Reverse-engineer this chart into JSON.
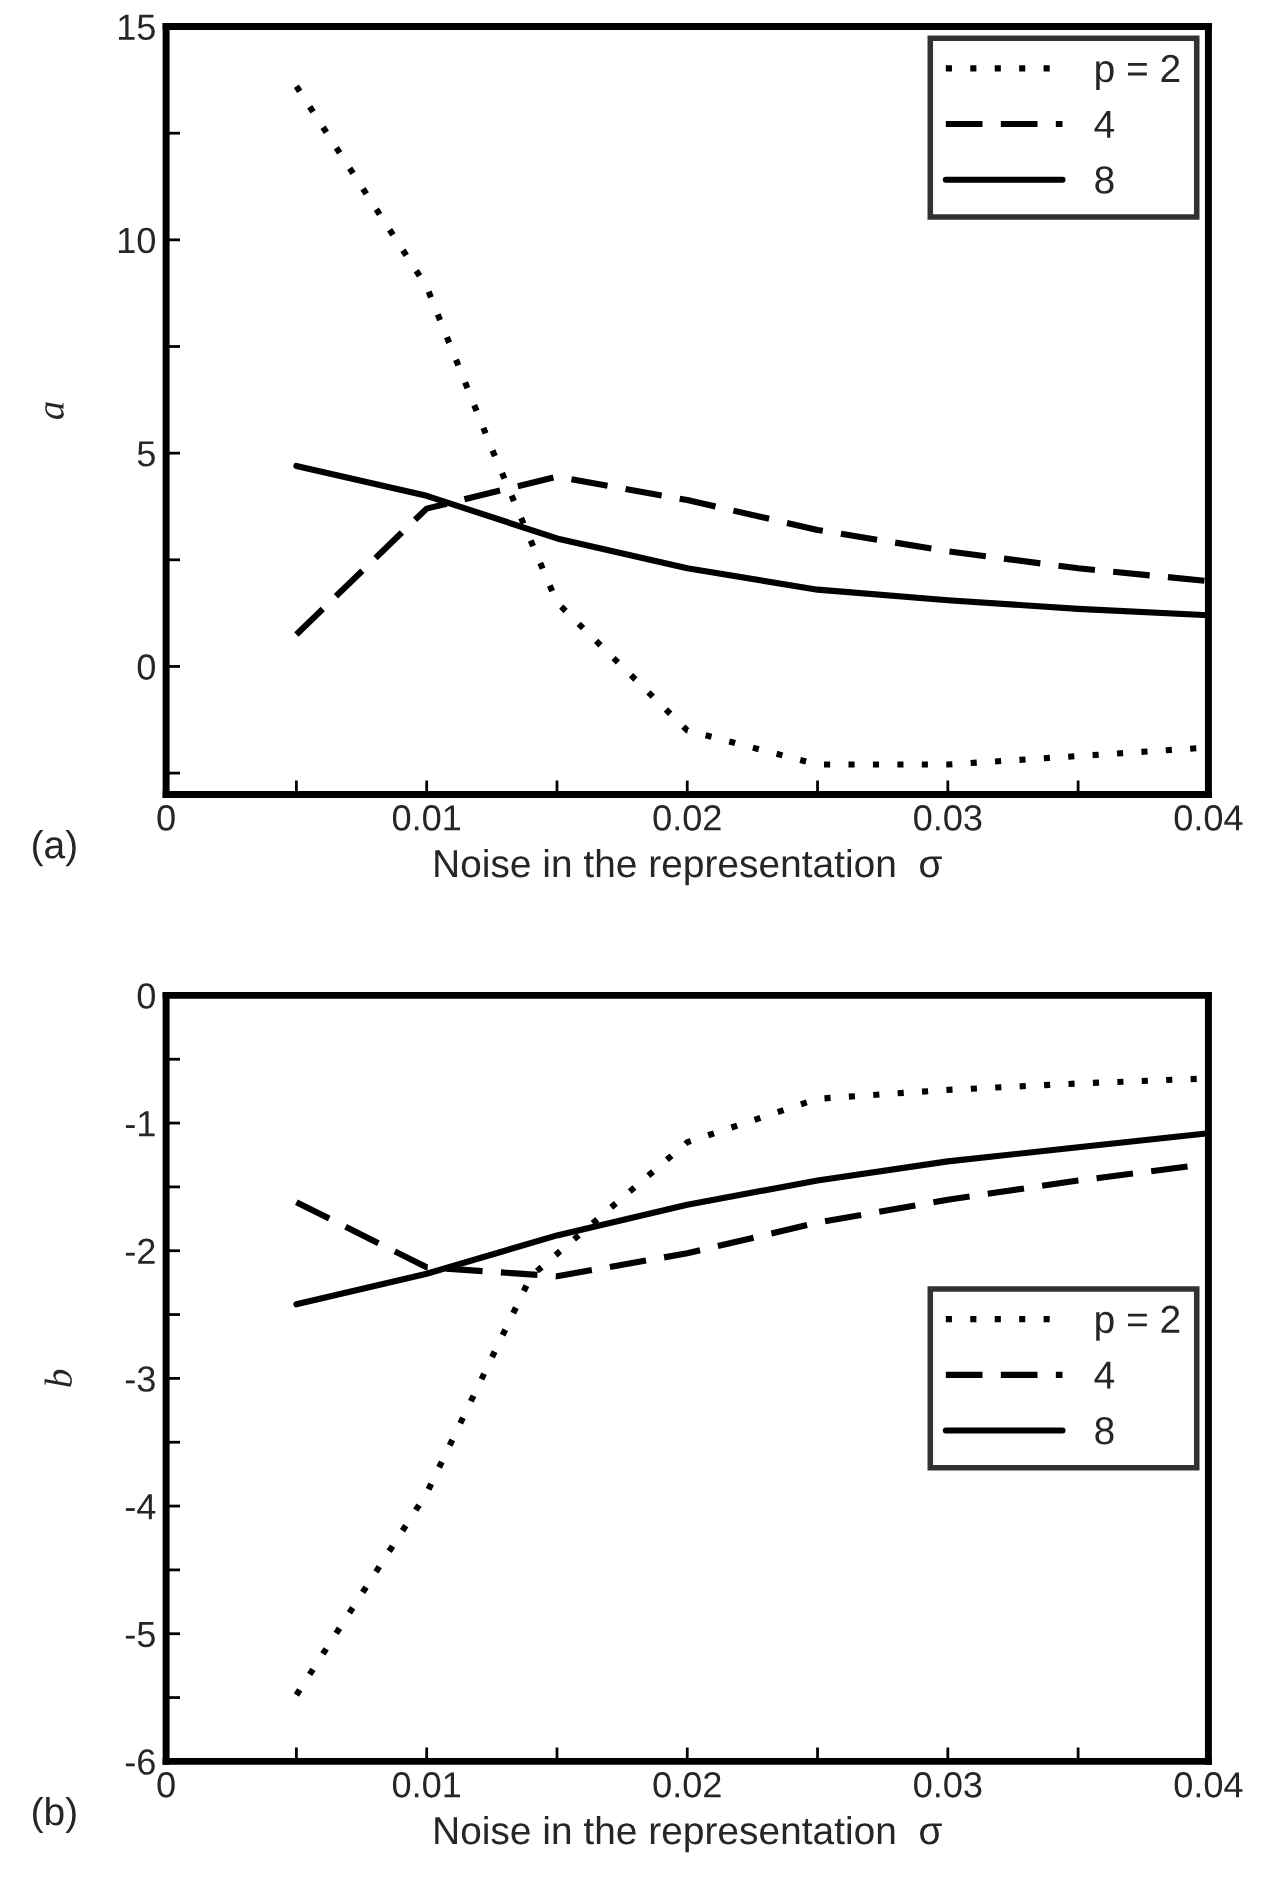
{
  "chart_data": [
    {
      "type": "line",
      "xlabel": "Noise in the representation  σ",
      "ylabel": "a",
      "annotations": [
        "(a)"
      ],
      "xlim": [
        0,
        0.04
      ],
      "xticks": [
        0,
        0.01,
        0.02,
        0.03,
        0.04,
        {
          "value": 0.005,
          "label": null
        },
        {
          "value": 0.015,
          "label": null
        },
        {
          "value": 0.025,
          "label": null
        },
        {
          "value": 0.035,
          "label": null
        }
      ],
      "ylim": [
        -3,
        15
      ],
      "yticks": [
        0,
        5,
        10,
        15,
        {
          "value": -2.5,
          "label": null
        },
        {
          "value": 2.5,
          "label": null
        },
        {
          "value": 7.5,
          "label": null
        },
        {
          "value": 12.5,
          "label": null
        }
      ],
      "grid": false,
      "legend": "top right",
      "series": [
        {
          "name": "p = 2",
          "color": "#000000",
          "line_style": "dotted",
          "x": [
            0.005,
            0.01,
            0.0125,
            0.015,
            0.02,
            0.025,
            0.03,
            0.035,
            0.04
          ],
          "values": [
            13.6,
            8.9,
            5.1,
            1.5,
            -1.5,
            -2.3,
            -2.3,
            -2.1,
            -1.9
          ]
        },
        {
          "name": "4",
          "color": "#000000",
          "line_style": "dashed",
          "x": [
            0.005,
            0.01,
            0.015,
            0.02,
            0.025,
            0.03,
            0.035,
            0.04
          ],
          "values": [
            0.75,
            3.7,
            4.45,
            3.9,
            3.2,
            2.7,
            2.3,
            2.0
          ]
        },
        {
          "name": "8",
          "color": "#000000",
          "line_style": "solid",
          "x": [
            0.005,
            0.01,
            0.015,
            0.02,
            0.025,
            0.03,
            0.035,
            0.04
          ],
          "values": [
            4.7,
            4.0,
            3.0,
            2.3,
            1.8,
            1.55,
            1.35,
            1.2
          ]
        }
      ]
    },
    {
      "type": "line",
      "xlabel": "Noise in the representation  σ",
      "ylabel": "b",
      "annotations": [
        "(b)"
      ],
      "xlim": [
        0,
        0.04
      ],
      "xticks": [
        0,
        0.01,
        0.02,
        0.03,
        0.04,
        {
          "value": 0.005,
          "label": null
        },
        {
          "value": 0.015,
          "label": null
        },
        {
          "value": 0.025,
          "label": null
        },
        {
          "value": 0.035,
          "label": null
        }
      ],
      "ylim": [
        -6,
        0
      ],
      "yticks": [
        -6,
        -5,
        -4,
        -3,
        -2,
        -1,
        0,
        {
          "value": -5.5,
          "label": null
        },
        {
          "value": -4.5,
          "label": null
        },
        {
          "value": -3.5,
          "label": null
        },
        {
          "value": -2.5,
          "label": null
        },
        {
          "value": -1.5,
          "label": null
        },
        {
          "value": -0.5,
          "label": null
        }
      ],
      "grid": false,
      "legend": "center right",
      "series": [
        {
          "name": "p = 2",
          "color": "#000000",
          "line_style": "dotted",
          "x": [
            0.005,
            0.01,
            0.014,
            0.02,
            0.025,
            0.03,
            0.035,
            0.04
          ],
          "values": [
            -5.48,
            -3.9,
            -2.2,
            -1.15,
            -0.81,
            -0.74,
            -0.69,
            -0.65
          ]
        },
        {
          "name": "4",
          "color": "#000000",
          "line_style": "dashed",
          "x": [
            0.005,
            0.01,
            0.015,
            0.02,
            0.025,
            0.03,
            0.035,
            0.04
          ],
          "values": [
            -1.62,
            -2.13,
            -2.2,
            -2.02,
            -1.78,
            -1.6,
            -1.45,
            -1.32
          ]
        },
        {
          "name": "8",
          "color": "#000000",
          "line_style": "solid",
          "x": [
            0.005,
            0.01,
            0.015,
            0.02,
            0.025,
            0.03,
            0.035,
            0.04
          ],
          "values": [
            -2.42,
            -2.18,
            -1.88,
            -1.64,
            -1.45,
            -1.3,
            -1.19,
            -1.08
          ]
        }
      ]
    }
  ]
}
